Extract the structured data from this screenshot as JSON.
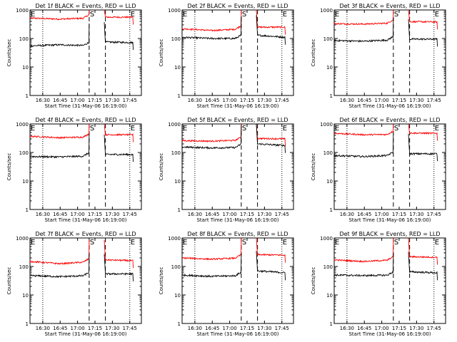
{
  "chart_data": {
    "type": "line",
    "y_scale": "log",
    "ylabel": "Counts/sec",
    "xlabel": "Start Time (31-May-06 16:19:00)",
    "x_ticks": [
      "16:30",
      "16:45",
      "17:00",
      "17:15",
      "17:30",
      "17:45"
    ],
    "x_tick_minutes": [
      30,
      45,
      60,
      75,
      90,
      105
    ],
    "x_range_minutes": [
      19,
      115
    ],
    "y_ticks": [
      "1",
      "10",
      "100",
      "1000"
    ],
    "ylim": [
      1,
      1000
    ],
    "markers": [
      {
        "label": "E",
        "minute": 19,
        "style": "dotted"
      },
      {
        "label": "",
        "minute": 30,
        "style": "dotted"
      },
      {
        "label": "S",
        "minute": 70,
        "style": "dashed"
      },
      {
        "label": "",
        "minute": 84,
        "style": "dashed"
      },
      {
        "label": "E",
        "minute": 105,
        "style": "dotted"
      }
    ],
    "series_colors": {
      "events": "#000000",
      "lld": "#ff0000"
    },
    "panels": [
      {
        "title": "Det 1f BLACK = Events, RED = LLD",
        "events": [
          55,
          60,
          56,
          75,
          72
        ],
        "lld": [
          520,
          480,
          520,
          560,
          560
        ]
      },
      {
        "title": "Det 2f BLACK = Events, RED = LLD",
        "events": [
          110,
          100,
          100,
          130,
          110
        ],
        "lld": [
          220,
          190,
          215,
          250,
          250
        ]
      },
      {
        "title": "Det 3f BLACK = Events, RED = LLD",
        "events": [
          85,
          80,
          90,
          95,
          95
        ],
        "lld": [
          330,
          320,
          350,
          390,
          380
        ]
      },
      {
        "title": "Det 4f BLACK = Events, RED = LLD",
        "events": [
          72,
          70,
          75,
          85,
          85
        ],
        "lld": [
          370,
          330,
          350,
          420,
          420
        ]
      },
      {
        "title": "Det 5f BLACK = Events, RED = LLD",
        "events": [
          155,
          145,
          150,
          200,
          175
        ],
        "lld": [
          260,
          250,
          270,
          310,
          300
        ]
      },
      {
        "title": "Det 6f BLACK = Events, RED = LLD",
        "events": [
          78,
          72,
          80,
          90,
          90
        ],
        "lld": [
          470,
          420,
          430,
          480,
          470
        ]
      },
      {
        "title": "Det 7f BLACK = Events, RED = LLD",
        "events": [
          48,
          44,
          48,
          55,
          55
        ],
        "lld": [
          150,
          125,
          145,
          170,
          160
        ]
      },
      {
        "title": "Det 8f BLACK = Events, RED = LLD",
        "events": [
          50,
          45,
          48,
          70,
          60
        ],
        "lld": [
          200,
          180,
          200,
          260,
          250
        ]
      },
      {
        "title": "Det 9f BLACK = Events, RED = LLD",
        "events": [
          50,
          48,
          50,
          65,
          60
        ],
        "lld": [
          170,
          150,
          170,
          220,
          210
        ]
      }
    ]
  }
}
